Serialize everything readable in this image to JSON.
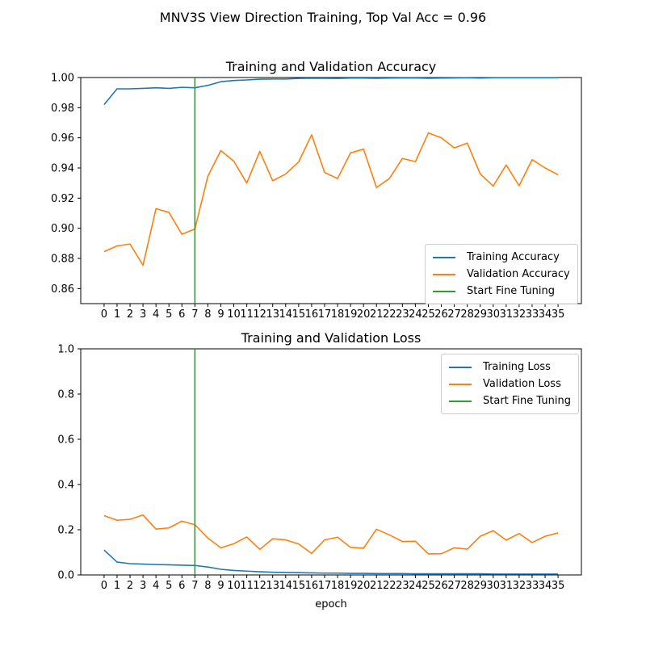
{
  "suptitle": "MNV3S View Direction Training, Top Val Acc = 0.96",
  "colors": {
    "training": "#1f77b4",
    "validation": "#ff7f0e",
    "finetune": "#2ca02c"
  },
  "chart_data": [
    {
      "type": "line",
      "title": "Training and Validation Accuracy",
      "xlabel": "",
      "ylabel": "",
      "x": [
        0,
        1,
        2,
        3,
        4,
        5,
        6,
        7,
        8,
        9,
        10,
        11,
        12,
        13,
        14,
        15,
        16,
        17,
        18,
        19,
        20,
        21,
        22,
        23,
        24,
        25,
        26,
        27,
        28,
        29,
        30,
        31,
        32,
        33,
        34,
        35
      ],
      "xlim": [
        -1.8,
        36.8
      ],
      "ylim": [
        0.85,
        1.0
      ],
      "yticks": [
        "0.86",
        "0.88",
        "0.90",
        "0.92",
        "0.94",
        "0.96",
        "0.98",
        "1.00"
      ],
      "grid": false,
      "legend_position": "lower-right",
      "vline": {
        "x": 7,
        "name": "Start Fine Tuning"
      },
      "series": [
        {
          "name": "Training Accuracy",
          "color": "#1f77b4",
          "values": [
            0.982,
            0.9925,
            0.9925,
            0.9928,
            0.9932,
            0.9928,
            0.9935,
            0.9932,
            0.9948,
            0.9972,
            0.998,
            0.9984,
            0.9989,
            0.999,
            0.999,
            0.9994,
            0.9995,
            0.9995,
            0.9994,
            0.9996,
            0.9996,
            0.9995,
            0.9996,
            0.9997,
            0.9997,
            0.9995,
            0.9996,
            0.9997,
            0.9998,
            0.9996,
            0.9998,
            0.9998,
            0.9998,
            0.9998,
            0.9998,
            0.9998
          ]
        },
        {
          "name": "Validation Accuracy",
          "color": "#ff7f0e",
          "values": [
            0.8845,
            0.8883,
            0.8895,
            0.8755,
            0.913,
            0.9105,
            0.896,
            0.8995,
            0.9345,
            0.9515,
            0.9445,
            0.93,
            0.951,
            0.9315,
            0.936,
            0.944,
            0.962,
            0.937,
            0.933,
            0.95,
            0.9525,
            0.927,
            0.933,
            0.9463,
            0.9442,
            0.9632,
            0.96,
            0.9533,
            0.9565,
            0.936,
            0.928,
            0.942,
            0.9282,
            0.9455,
            0.94,
            0.9355
          ]
        }
      ]
    },
    {
      "type": "line",
      "title": "Training and Validation Loss",
      "xlabel": "epoch",
      "ylabel": "",
      "x": [
        0,
        1,
        2,
        3,
        4,
        5,
        6,
        7,
        8,
        9,
        10,
        11,
        12,
        13,
        14,
        15,
        16,
        17,
        18,
        19,
        20,
        21,
        22,
        23,
        24,
        25,
        26,
        27,
        28,
        29,
        30,
        31,
        32,
        33,
        34,
        35
      ],
      "xlim": [
        -1.8,
        36.8
      ],
      "ylim": [
        0.0,
        1.0
      ],
      "yticks": [
        "0.0",
        "0.2",
        "0.4",
        "0.6",
        "0.8",
        "1.0"
      ],
      "grid": false,
      "legend_position": "upper-right",
      "vline": {
        "x": 7,
        "name": "Start Fine Tuning"
      },
      "series": [
        {
          "name": "Training Loss",
          "color": "#1f77b4",
          "values": [
            0.11,
            0.057,
            0.05,
            0.048,
            0.046,
            0.045,
            0.043,
            0.042,
            0.035,
            0.025,
            0.02,
            0.017,
            0.014,
            0.012,
            0.011,
            0.01,
            0.009,
            0.008,
            0.008,
            0.007,
            0.007,
            0.006,
            0.006,
            0.006,
            0.005,
            0.005,
            0.005,
            0.005,
            0.005,
            0.005,
            0.004,
            0.004,
            0.004,
            0.004,
            0.004,
            0.004
          ]
        },
        {
          "name": "Validation Loss",
          "color": "#ff7f0e",
          "values": [
            0.262,
            0.242,
            0.246,
            0.265,
            0.203,
            0.208,
            0.238,
            0.222,
            0.163,
            0.12,
            0.138,
            0.168,
            0.113,
            0.16,
            0.155,
            0.137,
            0.095,
            0.155,
            0.167,
            0.122,
            0.118,
            0.202,
            0.177,
            0.148,
            0.149,
            0.093,
            0.094,
            0.12,
            0.114,
            0.171,
            0.196,
            0.154,
            0.183,
            0.143,
            0.171,
            0.186
          ]
        }
      ]
    }
  ]
}
